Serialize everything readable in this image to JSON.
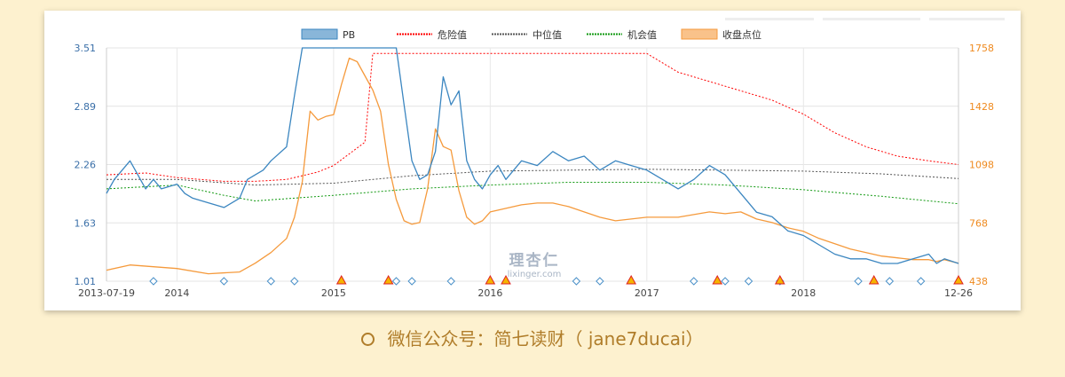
{
  "chart_data": {
    "type": "line",
    "x_start_label": "2013-07-19",
    "x_end_label": "12-26",
    "x_ticks": [
      "2014",
      "2015",
      "2016",
      "2017",
      "2018"
    ],
    "y_left": {
      "ticks": [
        "3.51",
        "2.89",
        "2.26",
        "1.63",
        "1.01"
      ],
      "range": [
        1.01,
        3.51
      ]
    },
    "y_right": {
      "ticks": [
        "1758",
        "1428",
        "1098",
        "768",
        "438"
      ],
      "range": [
        438,
        1758
      ]
    },
    "legend": [
      {
        "name": "PB",
        "color": "#3b86c0"
      },
      {
        "name": "危险值",
        "color": "#ff0000"
      },
      {
        "name": "中位值",
        "color": "#555555"
      },
      {
        "name": "机会值",
        "color": "#119911"
      },
      {
        "name": "收盘点位",
        "color": "#f59a3c"
      }
    ],
    "series": [
      {
        "name": "PB",
        "axis": "left",
        "x": [
          2013.55,
          2013.6,
          2013.7,
          2013.75,
          2013.8,
          2013.85,
          2013.9,
          2014,
          2014.05,
          2014.1,
          2014.2,
          2014.3,
          2014.4,
          2014.45,
          2014.5,
          2014.55,
          2014.6,
          2014.7,
          2014.75,
          2014.8,
          2014.85,
          2014.9,
          2014.95,
          2015.0,
          2015.05,
          2015.1,
          2015.15,
          2015.2,
          2015.3,
          2015.4,
          2015.45,
          2015.5,
          2015.55,
          2015.6,
          2015.65,
          2015.7,
          2015.75,
          2015.8,
          2015.85,
          2015.9,
          2015.95,
          2016.0,
          2016.05,
          2016.1,
          2016.2,
          2016.3,
          2016.4,
          2016.5,
          2016.6,
          2016.7,
          2016.8,
          2016.9,
          2017.0,
          2017.1,
          2017.2,
          2017.3,
          2017.4,
          2017.5,
          2017.6,
          2017.7,
          2017.8,
          2017.9,
          2018.0,
          2018.05,
          2018.1,
          2018.2,
          2018.3,
          2018.4,
          2018.5,
          2018.6,
          2018.7,
          2018.8,
          2018.85,
          2018.9,
          2018.99
        ],
        "values": [
          1.95,
          2.1,
          2.3,
          2.15,
          2.0,
          2.1,
          2.0,
          2.05,
          1.95,
          1.9,
          1.85,
          1.8,
          1.9,
          2.1,
          2.15,
          2.2,
          2.3,
          2.45,
          3.0,
          3.51,
          3.51,
          3.51,
          3.51,
          3.51,
          3.51,
          3.51,
          3.51,
          3.51,
          3.51,
          3.51,
          2.9,
          2.3,
          2.1,
          2.15,
          2.4,
          3.2,
          2.9,
          3.05,
          2.3,
          2.1,
          2.0,
          2.15,
          2.25,
          2.1,
          2.3,
          2.25,
          2.4,
          2.3,
          2.35,
          2.2,
          2.3,
          2.25,
          2.2,
          2.1,
          2.0,
          2.1,
          2.25,
          2.15,
          1.95,
          1.75,
          1.7,
          1.55,
          1.5,
          1.45,
          1.4,
          1.3,
          1.25,
          1.25,
          1.2,
          1.2,
          1.25,
          1.3,
          1.2,
          1.25,
          1.2
        ]
      },
      {
        "name": "危险值",
        "axis": "left",
        "x": [
          2013.55,
          2013.8,
          2014.0,
          2014.3,
          2014.5,
          2014.7,
          2014.9,
          2015.0,
          2015.2,
          2015.25,
          2015.5,
          2016.0,
          2016.5,
          2017.0,
          2017.2,
          2017.4,
          2017.6,
          2017.8,
          2018.0,
          2018.2,
          2018.4,
          2018.6,
          2018.8,
          2018.99
        ],
        "values": [
          2.15,
          2.17,
          2.12,
          2.08,
          2.08,
          2.1,
          2.18,
          2.25,
          2.5,
          3.45,
          3.45,
          3.45,
          3.45,
          3.45,
          3.25,
          3.15,
          3.05,
          2.95,
          2.8,
          2.6,
          2.45,
          2.35,
          2.3,
          2.26
        ]
      },
      {
        "name": "中位值",
        "axis": "left",
        "x": [
          2013.55,
          2014.0,
          2014.5,
          2015.0,
          2015.5,
          2016.0,
          2016.5,
          2017.0,
          2017.5,
          2018.0,
          2018.5,
          2018.99
        ],
        "values": [
          2.1,
          2.1,
          2.04,
          2.06,
          2.14,
          2.19,
          2.2,
          2.21,
          2.2,
          2.19,
          2.16,
          2.11
        ]
      },
      {
        "name": "机会值",
        "axis": "left",
        "x": [
          2013.55,
          2014.0,
          2014.3,
          2014.5,
          2015.0,
          2015.5,
          2016.0,
          2016.5,
          2017.0,
          2017.5,
          2018.0,
          2018.5,
          2018.99
        ],
        "values": [
          2.0,
          2.04,
          1.93,
          1.87,
          1.93,
          2.0,
          2.04,
          2.07,
          2.07,
          2.04,
          1.99,
          1.92,
          1.84
        ]
      },
      {
        "name": "收盘点位",
        "axis": "right",
        "x": [
          2013.55,
          2013.7,
          2013.85,
          2014.0,
          2014.2,
          2014.4,
          2014.5,
          2014.6,
          2014.7,
          2014.75,
          2014.8,
          2014.85,
          2014.9,
          2014.95,
          2015.0,
          2015.05,
          2015.1,
          2015.15,
          2015.2,
          2015.25,
          2015.3,
          2015.35,
          2015.4,
          2015.45,
          2015.5,
          2015.55,
          2015.6,
          2015.65,
          2015.7,
          2015.75,
          2015.8,
          2015.85,
          2015.9,
          2015.95,
          2016.0,
          2016.1,
          2016.2,
          2016.3,
          2016.4,
          2016.5,
          2016.6,
          2016.7,
          2016.8,
          2016.9,
          2017.0,
          2017.2,
          2017.4,
          2017.5,
          2017.6,
          2017.7,
          2017.8,
          2017.9,
          2018.0,
          2018.05,
          2018.1,
          2018.2,
          2018.3,
          2018.4,
          2018.5,
          2018.6,
          2018.7,
          2018.8,
          2018.85,
          2018.9,
          2018.99
        ],
        "values": [
          500,
          530,
          520,
          510,
          480,
          490,
          540,
          600,
          680,
          800,
          1000,
          1400,
          1350,
          1370,
          1380,
          1550,
          1700,
          1680,
          1600,
          1520,
          1400,
          1100,
          900,
          780,
          760,
          770,
          960,
          1300,
          1200,
          1180,
          950,
          800,
          760,
          780,
          830,
          850,
          870,
          880,
          880,
          860,
          830,
          800,
          780,
          790,
          800,
          800,
          830,
          820,
          830,
          790,
          770,
          740,
          720,
          700,
          680,
          650,
          620,
          600,
          580,
          570,
          560,
          560,
          550,
          560,
          540
        ]
      }
    ],
    "markers": {
      "diamonds": [
        2013.85,
        2014.3,
        2014.6,
        2014.75,
        2015.4,
        2015.5,
        2015.75,
        2016.55,
        2016.7,
        2017.3,
        2017.5,
        2017.65,
        2017.85,
        2018.35,
        2018.55,
        2018.75
      ],
      "triangles": [
        2015.05,
        2015.35,
        2016.0,
        2016.1,
        2016.9,
        2017.45,
        2017.85,
        2018.45,
        2018.99
      ]
    }
  },
  "watermark": {
    "main": "理杏仁",
    "sub": "lixinger.com"
  },
  "caption": "微信公众号：简七读财（ jane7ducai）"
}
